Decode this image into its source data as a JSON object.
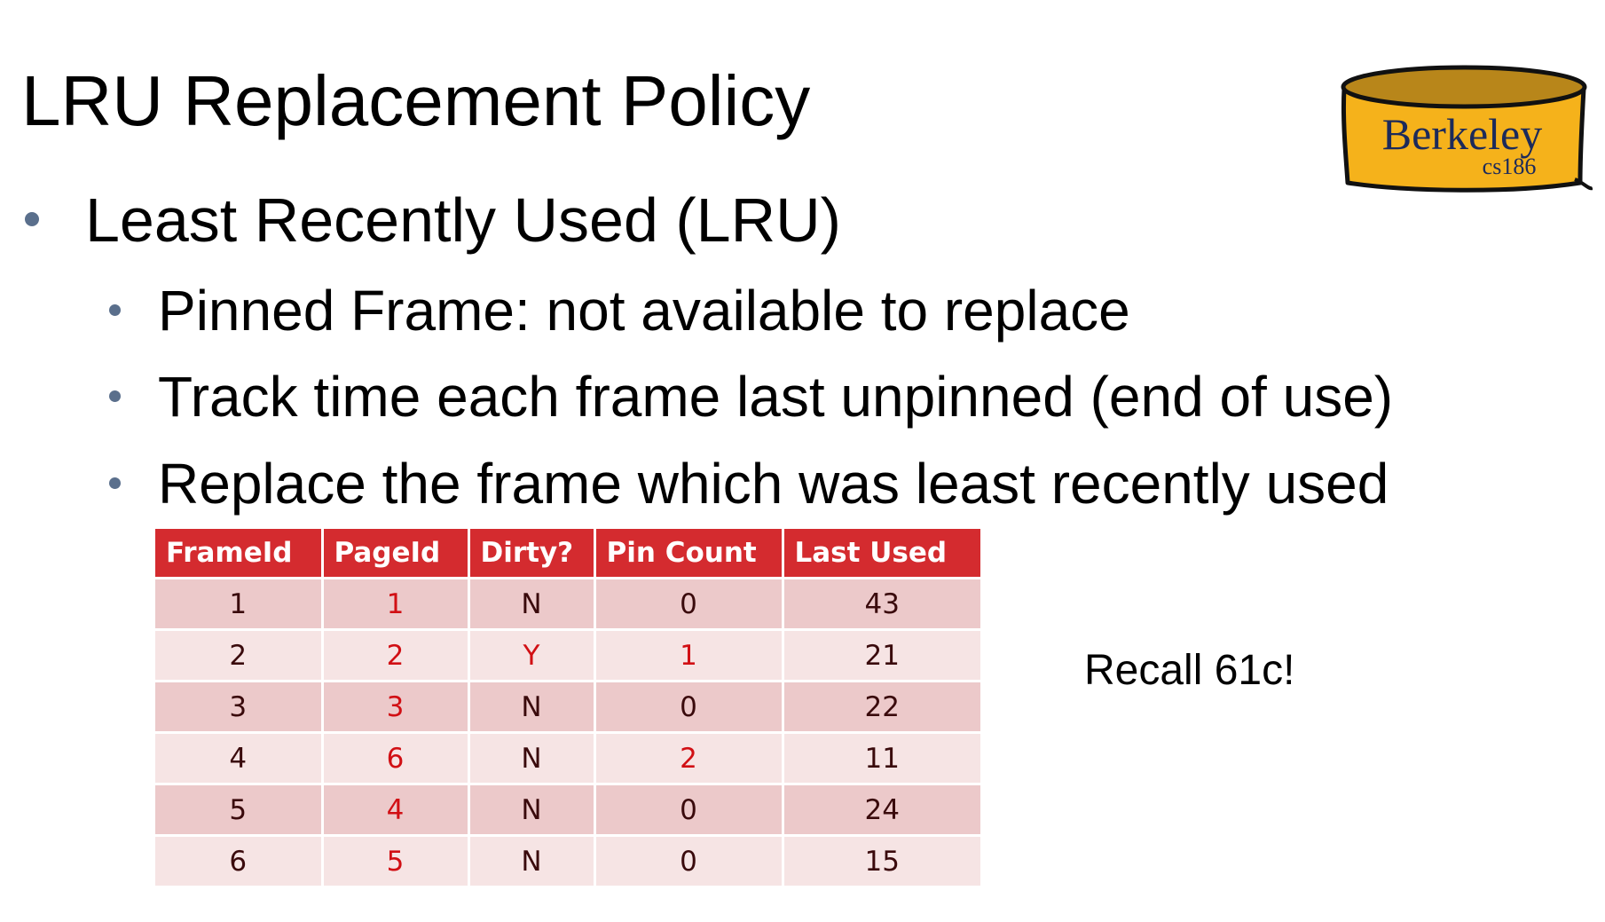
{
  "slide": {
    "title": "LRU Replacement Policy",
    "bullet_main": "Least Recently Used (LRU)",
    "sub_bullets": [
      "Pinned Frame: not available to replace",
      "Track time each frame last unpinned (end of use)",
      "Replace the frame which was least recently used"
    ],
    "note": "Recall 61c!"
  },
  "logo": {
    "name": "Berkeley",
    "course": "cs186",
    "fill_color": "#f5b21b",
    "rim_color": "#b8861a"
  },
  "table": {
    "headers": [
      "FrameId",
      "PageId",
      "Dirty?",
      "Pin Count",
      "Last Used"
    ],
    "rows": [
      [
        "1",
        "1",
        "N",
        "0",
        "43"
      ],
      [
        "2",
        "2",
        "Y",
        "1",
        "21"
      ],
      [
        "3",
        "3",
        "N",
        "0",
        "22"
      ],
      [
        "4",
        "6",
        "N",
        "2",
        "11"
      ],
      [
        "5",
        "4",
        "N",
        "0",
        "24"
      ],
      [
        "6",
        "5",
        "N",
        "0",
        "15"
      ]
    ],
    "header_color": "#d42b2f",
    "highlight_color": "#d10f14"
  }
}
